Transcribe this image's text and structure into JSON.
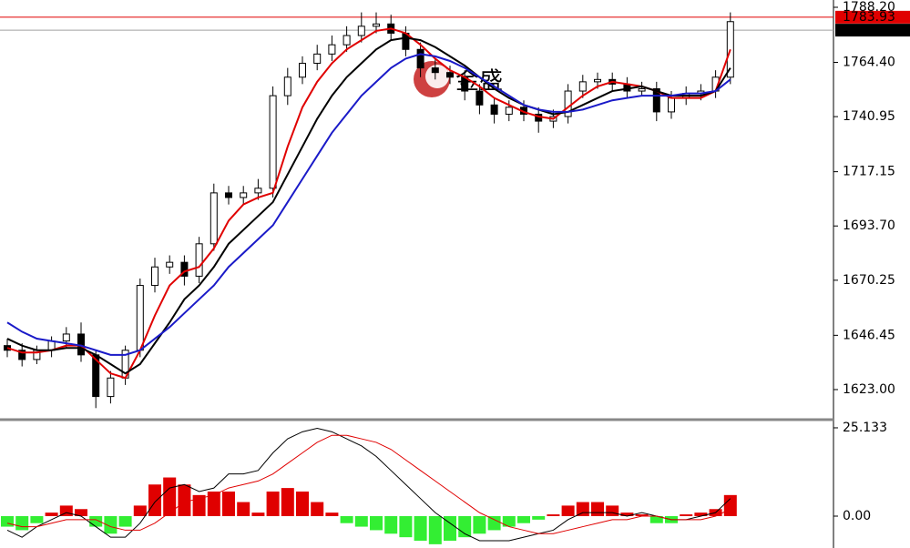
{
  "chart_data": [
    {
      "type": "candlestick",
      "ylim": [
        1610.4,
        1791.35
      ],
      "yticks": [
        {
          "value": 1788.2,
          "label": "1788.20"
        },
        {
          "value": 1764.4,
          "label": "1764.40"
        },
        {
          "value": 1740.95,
          "label": "1740.95"
        },
        {
          "value": 1717.15,
          "label": "1717.15"
        },
        {
          "value": 1693.7,
          "label": "1693.70"
        },
        {
          "value": 1670.25,
          "label": "1670.25"
        },
        {
          "value": 1646.45,
          "label": "1646.45"
        },
        {
          "value": 1623,
          "label": "1623.00"
        }
      ],
      "open": [
        1642,
        1640,
        1636,
        1640,
        1644,
        1647,
        1638,
        1620,
        1628,
        1640,
        1668,
        1676,
        1678,
        1672,
        1686,
        1708,
        1706,
        1708,
        1710,
        1750,
        1758,
        1764,
        1768,
        1772,
        1776,
        1780,
        1781,
        1777,
        1770,
        1762,
        1760,
        1758,
        1752,
        1746,
        1742,
        1745,
        1742,
        1739,
        1741,
        1752,
        1756,
        1757,
        1755,
        1752,
        1753,
        1743,
        1749,
        1751,
        1752,
        1758
      ],
      "high": [
        1645,
        1643,
        1642,
        1646,
        1650,
        1652,
        1640,
        1631,
        1642,
        1671,
        1680,
        1681,
        1681,
        1689,
        1712,
        1711,
        1711,
        1714,
        1754,
        1762,
        1767,
        1772,
        1776,
        1780,
        1786,
        1786,
        1785,
        1780,
        1773,
        1766,
        1763,
        1761,
        1755,
        1749,
        1748,
        1748,
        1745,
        1744,
        1755,
        1759,
        1760,
        1760,
        1758,
        1756,
        1756,
        1752,
        1754,
        1755,
        1761,
        1786
      ],
      "low": [
        1637,
        1633,
        1634,
        1637,
        1641,
        1635,
        1615,
        1617,
        1625,
        1637,
        1665,
        1673,
        1668,
        1669,
        1683,
        1703,
        1703,
        1705,
        1706,
        1746,
        1755,
        1761,
        1765,
        1769,
        1773,
        1777,
        1774,
        1767,
        1758,
        1757,
        1755,
        1748,
        1742,
        1738,
        1739,
        1739,
        1734,
        1736,
        1738,
        1749,
        1753,
        1752,
        1749,
        1750,
        1739,
        1740,
        1746,
        1748,
        1749,
        1755
      ],
      "close": [
        1640,
        1636,
        1640,
        1644,
        1647,
        1638,
        1620,
        1628,
        1640,
        1668,
        1676,
        1678,
        1672,
        1686,
        1708,
        1706,
        1708,
        1710,
        1750,
        1758,
        1764,
        1768,
        1772,
        1776,
        1780,
        1781,
        1777,
        1770,
        1762,
        1760,
        1758,
        1752,
        1746,
        1742,
        1745,
        1742,
        1739,
        1741,
        1752,
        1756,
        1757,
        1755,
        1752,
        1753,
        1743,
        1749,
        1751,
        1752,
        1758,
        1782
      ],
      "series": [
        {
          "color": "#e00000",
          "values": [
            1641,
            1639,
            1639,
            1640,
            1642,
            1642,
            1636,
            1630,
            1628,
            1640,
            1655,
            1668,
            1674,
            1676,
            1684,
            1696,
            1703,
            1706,
            1708,
            1728,
            1745,
            1756,
            1764,
            1770,
            1774,
            1778,
            1779,
            1777,
            1772,
            1766,
            1761,
            1758,
            1754,
            1749,
            1746,
            1743,
            1741,
            1740,
            1745,
            1750,
            1754,
            1756,
            1755,
            1754,
            1752,
            1749,
            1749,
            1749,
            1752,
            1770
          ]
        },
        {
          "color": "#000000",
          "values": [
            1645,
            1642,
            1640,
            1640,
            1641,
            1641,
            1638,
            1634,
            1630,
            1634,
            1643,
            1652,
            1662,
            1668,
            1676,
            1686,
            1692,
            1698,
            1704,
            1716,
            1728,
            1740,
            1750,
            1758,
            1764,
            1770,
            1774,
            1775,
            1774,
            1771,
            1767,
            1763,
            1758,
            1753,
            1749,
            1746,
            1744,
            1742,
            1743,
            1746,
            1749,
            1752,
            1753,
            1754,
            1752,
            1750,
            1750,
            1750,
            1752,
            1762
          ]
        },
        {
          "color": "#1a1ac8",
          "values": [
            1652,
            1648,
            1645,
            1644,
            1643,
            1642,
            1640,
            1638,
            1638,
            1640,
            1645,
            1650,
            1656,
            1662,
            1668,
            1676,
            1682,
            1688,
            1694,
            1704,
            1714,
            1724,
            1734,
            1742,
            1750,
            1756,
            1762,
            1766,
            1768,
            1767,
            1765,
            1762,
            1758,
            1754,
            1750,
            1746,
            1744,
            1743,
            1743,
            1744,
            1746,
            1748,
            1749,
            1750,
            1750,
            1750,
            1751,
            1751,
            1752,
            1757
          ]
        }
      ],
      "hlines": [
        {
          "value": 1783.93,
          "color": "#e00000"
        },
        {
          "value": 1778.33,
          "color": "#a0a0a0"
        }
      ],
      "watermark": "金盛"
    },
    {
      "type": "macd",
      "ylim": [
        -9.07,
        27.2
      ],
      "yticks": [
        25.133,
        {
          "value": 0,
          "label": "0.00"
        }
      ],
      "up_color": "#e00000",
      "down_color": "#33ee33",
      "values": [
        -3,
        -4,
        -2,
        1,
        3,
        2,
        -3,
        -5,
        -3,
        3,
        9,
        11,
        9,
        6,
        7,
        7,
        4,
        1,
        7,
        8,
        7,
        4,
        1,
        -2,
        -3,
        -4,
        -5,
        -6,
        -7,
        -8,
        -7,
        -6,
        -5,
        -4,
        -3,
        -2,
        -1,
        0.5,
        3,
        4,
        4,
        3,
        1,
        0.5,
        -2,
        -2,
        0.5,
        1,
        2,
        6
      ],
      "series": [
        {
          "color": "#000000",
          "values": [
            -4,
            -6,
            -3,
            -1,
            1,
            0,
            -3,
            -6,
            -6,
            -2,
            4,
            8,
            9,
            7,
            8,
            12,
            12,
            13,
            18,
            22,
            24,
            25,
            24,
            22,
            20,
            17,
            13,
            9,
            5,
            1,
            -2,
            -5,
            -7,
            -7,
            -7,
            -6,
            -5,
            -4,
            -1,
            1,
            1,
            1,
            0,
            1,
            0,
            -1,
            -1,
            0,
            1,
            5
          ]
        },
        {
          "color": "#e00000",
          "values": [
            -2,
            -3,
            -3,
            -2,
            -1,
            -1,
            -1,
            -3,
            -4,
            -4,
            -2,
            1,
            4,
            5,
            6,
            8,
            9,
            10,
            12,
            15,
            18,
            21,
            23,
            23,
            22,
            21,
            19,
            16,
            13,
            10,
            7,
            4,
            1,
            -1,
            -3,
            -4,
            -5,
            -5,
            -4,
            -3,
            -2,
            -1,
            -1,
            0,
            0,
            -1,
            -1,
            -1,
            0,
            2
          ]
        }
      ]
    }
  ]
}
